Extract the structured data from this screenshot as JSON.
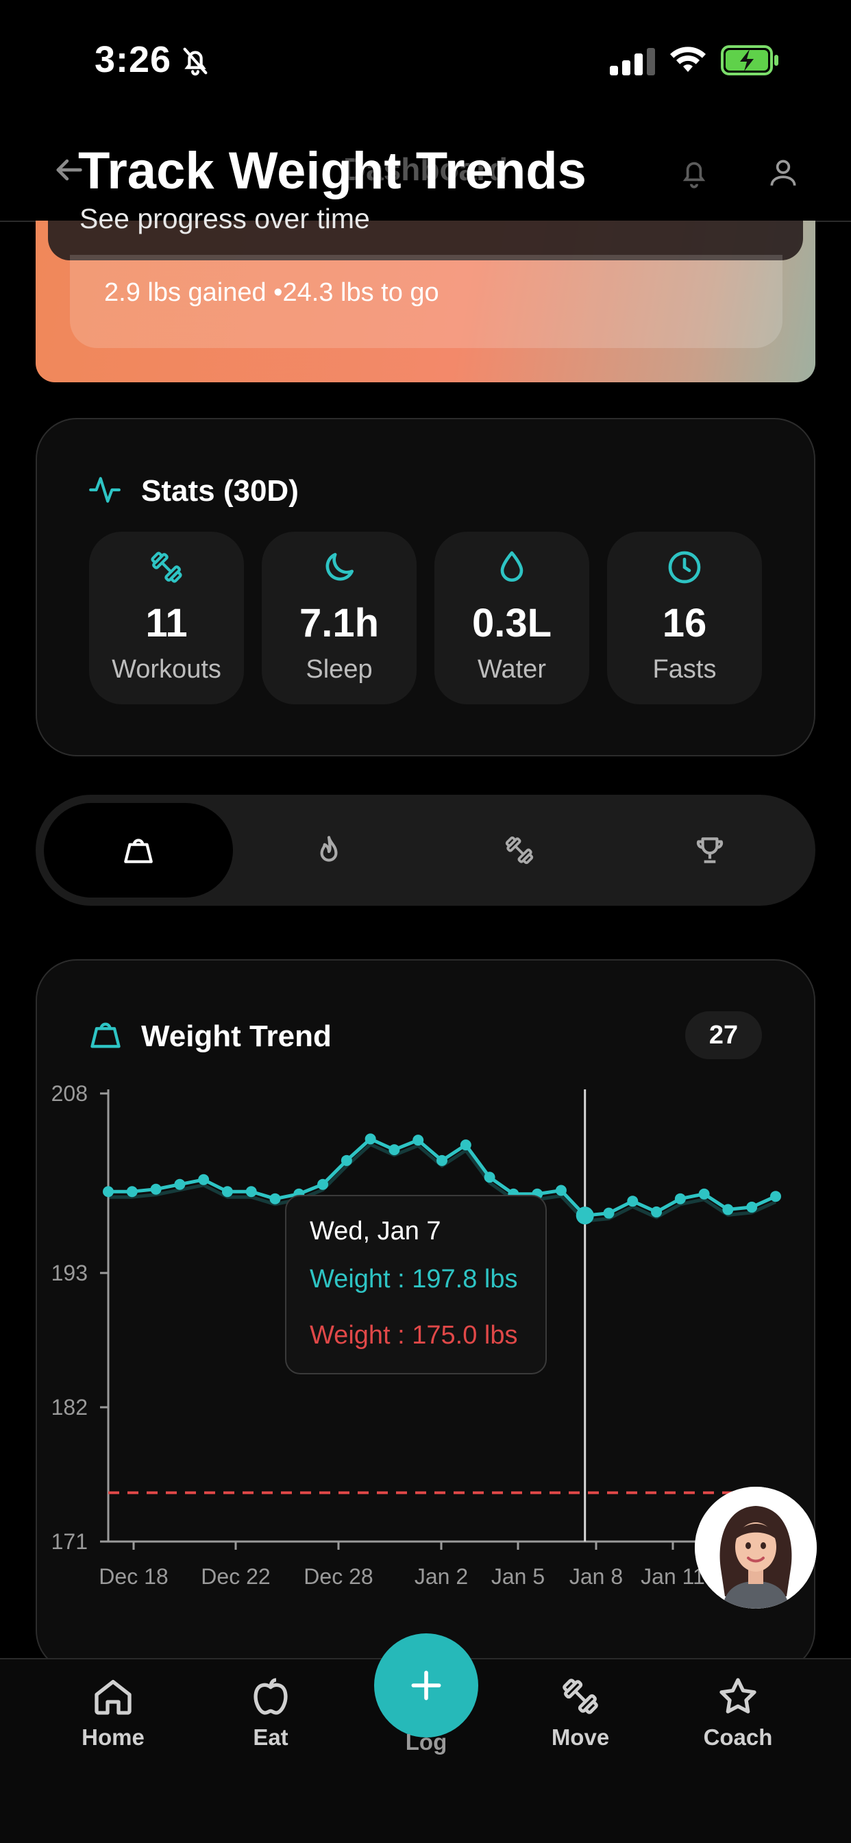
{
  "status_bar": {
    "time": "3:26"
  },
  "header": {
    "title": "Dashboard"
  },
  "caption": {
    "title": "Track Weight Trends",
    "subtitle": "See progress over time"
  },
  "goal": {
    "text": "2.9 lbs gained •24.3 lbs to go"
  },
  "stats": {
    "title": "Stats (30D)",
    "tiles": [
      {
        "value": "11",
        "label": "Workouts",
        "icon": "dumbbell-icon"
      },
      {
        "value": "7.1h",
        "label": "Sleep",
        "icon": "moon-icon"
      },
      {
        "value": "0.3L",
        "label": "Water",
        "icon": "droplet-icon"
      },
      {
        "value": "16",
        "label": "Fasts",
        "icon": "clock-icon"
      }
    ]
  },
  "tabs": [
    {
      "icon": "weight-icon",
      "active": true
    },
    {
      "icon": "flame-icon",
      "active": false
    },
    {
      "icon": "dumbbell-icon",
      "active": false
    },
    {
      "icon": "trophy-icon",
      "active": false
    }
  ],
  "weight_trend": {
    "title": "Weight Trend",
    "badge": "27",
    "tooltip": {
      "date": "Wed, Jan 7",
      "weight_line": "Weight : 197.8 lbs",
      "goal_line": "Weight : 175.0 lbs"
    }
  },
  "chart_data": {
    "type": "line",
    "x_tick_labels": [
      "Dec 18",
      "Dec 22",
      "Dec 28",
      "Jan 2",
      "Jan 5",
      "Jan 8",
      "Jan 11"
    ],
    "y_tick_labels": [
      "208",
      "193",
      "182",
      "171"
    ],
    "y_ticks": [
      208,
      193,
      182,
      171
    ],
    "ylim": [
      171,
      208
    ],
    "series": [
      {
        "color": "#2ec4c4",
        "values": [
          199.8,
          199.8,
          200.0,
          200.4,
          200.8,
          199.8,
          199.8,
          199.2,
          199.6,
          200.4,
          202.4,
          204.2,
          203.3,
          204.1,
          202.4,
          203.7,
          201.0,
          199.6,
          199.6,
          199.9,
          197.8,
          198.0,
          199.0,
          198.1,
          199.2,
          199.6,
          198.3,
          198.5,
          199.4
        ]
      }
    ],
    "goal_line": {
      "value": 175.0,
      "color": "#e04848"
    },
    "highlighted_index": 20,
    "highlight_label": "Wed, Jan 7"
  },
  "nav": {
    "items": [
      {
        "label": "Home",
        "icon": "home-icon"
      },
      {
        "label": "Eat",
        "icon": "apple-icon"
      },
      {
        "label": "Log",
        "icon": "plus-icon"
      },
      {
        "label": "Move",
        "icon": "dumbbell-icon"
      },
      {
        "label": "Coach",
        "icon": "star-icon"
      }
    ]
  },
  "colors": {
    "accent": "#2ec4c4",
    "goal": "#e04848",
    "goal_card": "#f0885a"
  }
}
